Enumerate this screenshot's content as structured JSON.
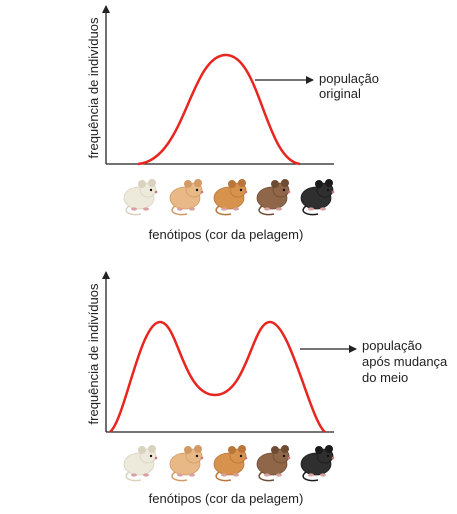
{
  "colors": {
    "curve": "#e8251f",
    "axis": "#222222",
    "arrow": "#222222"
  },
  "mice": [
    {
      "name": "white-mouse-icon",
      "body": "#eeeadb",
      "shade": "#d8d2bf"
    },
    {
      "name": "light-orange-mouse-icon",
      "body": "#e8b886",
      "shade": "#d29a64"
    },
    {
      "name": "orange-mouse-icon",
      "body": "#d7924e",
      "shade": "#b8763a"
    },
    {
      "name": "brown-mouse-icon",
      "body": "#8f6648",
      "shade": "#6e4c33"
    },
    {
      "name": "dark-mouse-icon",
      "body": "#2f2f2f",
      "shade": "#1a1a1a"
    }
  ],
  "chart_top": {
    "ylabel": "frequência de indivíduos",
    "xlabel": "fenótipos (cor da pelagem)",
    "annotation": [
      "população",
      "original"
    ]
  },
  "chart_bottom": {
    "ylabel": "frequência de indivíduos",
    "xlabel": "fenótipos (cor da pelagem)",
    "annotation": [
      "população",
      "após mudança",
      "do meio"
    ]
  }
}
